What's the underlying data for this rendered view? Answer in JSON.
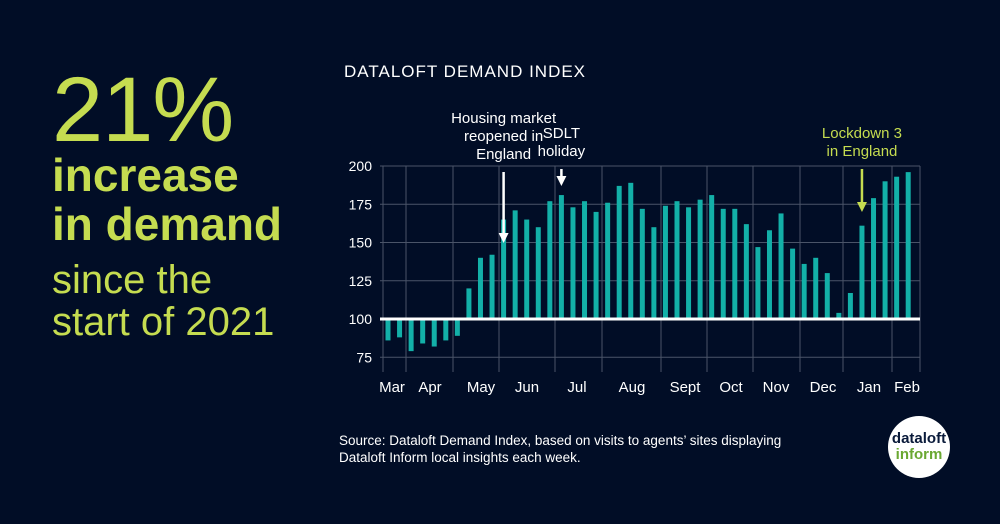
{
  "headline": {
    "percent": "21%",
    "line1": "increase",
    "line2": "in demand",
    "line3": "since the",
    "line4": "start of 2021"
  },
  "chart_data": {
    "type": "bar",
    "title": "DATALOFT DEMAND INDEX",
    "baseline": 100,
    "ylim": [
      70,
      200
    ],
    "yticks": [
      75,
      100,
      125,
      150,
      175,
      200
    ],
    "xtick_labels": [
      "Mar",
      "Apr",
      "May",
      "Jun",
      "Jul",
      "Aug",
      "Sept",
      "Oct",
      "Nov",
      "Dec",
      "Jan",
      "Feb"
    ],
    "values": [
      86,
      88,
      79,
      84,
      82,
      86,
      89,
      120,
      140,
      142,
      165,
      171,
      165,
      160,
      177,
      181,
      173,
      177,
      170,
      176,
      187,
      189,
      172,
      160,
      174,
      177,
      173,
      178,
      181,
      172,
      172,
      162,
      147,
      158,
      169,
      146,
      136,
      140,
      130,
      104,
      117,
      161,
      179,
      190,
      193,
      196
    ],
    "annotations": [
      {
        "text": [
          "Housing market",
          "reopened in",
          "England"
        ],
        "bar_index": 10,
        "color": "#ffffff"
      },
      {
        "text": [
          "SDLT",
          "holiday"
        ],
        "bar_index": 15,
        "color": "#ffffff"
      },
      {
        "text": [
          "Lockdown 3",
          "in England"
        ],
        "bar_index": 41,
        "color": "#c5dc50"
      }
    ],
    "grid": true,
    "bar_color": "#13b0a8"
  },
  "source": [
    "Source: Dataloft Demand Index, based on visits to agents’ sites displaying",
    "Dataloft Inform local insights each week."
  ],
  "logo": {
    "line1": "dataloft",
    "line2": "inform"
  }
}
